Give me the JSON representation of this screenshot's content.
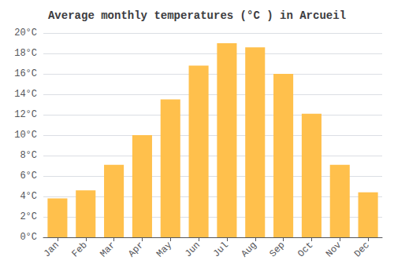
{
  "chart_data": {
    "type": "bar",
    "title": "Average monthly temperatures (°C ) in Arcueil",
    "categories": [
      "Jan",
      "Feb",
      "Mar",
      "Apr",
      "May",
      "Jun",
      "Jul",
      "Aug",
      "Sep",
      "Oct",
      "Nov",
      "Dec"
    ],
    "values": [
      3.8,
      4.6,
      7.1,
      10.0,
      13.5,
      16.8,
      19.0,
      18.6,
      16.0,
      12.1,
      7.1,
      4.4
    ],
    "color": "#FFC04C",
    "ylim": [
      0,
      20
    ],
    "yticks": [
      {
        "value": 0,
        "label": "0°C"
      },
      {
        "value": 2,
        "label": "2°C"
      },
      {
        "value": 4,
        "label": "4°C"
      },
      {
        "value": 6,
        "label": "6°C"
      },
      {
        "value": 8,
        "label": "8°C"
      },
      {
        "value": 10,
        "label": "10°C"
      },
      {
        "value": 12,
        "label": "12°C"
      },
      {
        "value": 14,
        "label": "14°C"
      },
      {
        "value": 16,
        "label": "16°C"
      },
      {
        "value": 18,
        "label": "18°C"
      },
      {
        "value": 20,
        "label": "20°C"
      }
    ],
    "grid": true
  }
}
